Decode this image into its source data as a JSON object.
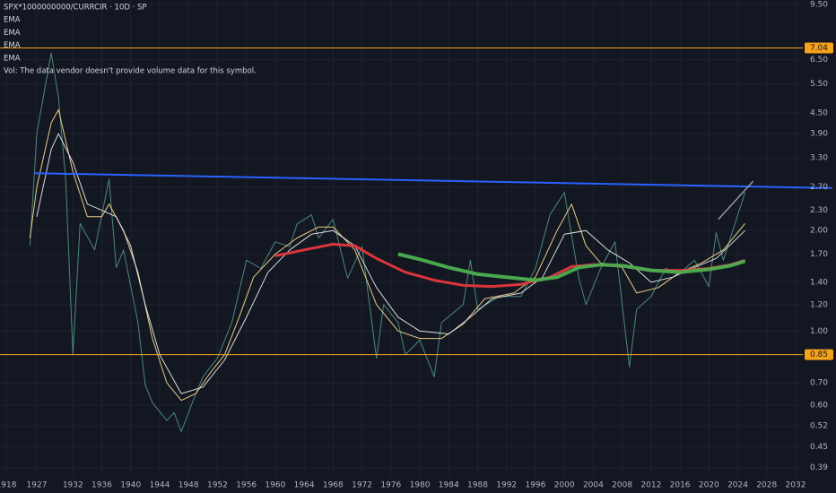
{
  "chart_data": {
    "type": "line",
    "title": "SPX*1000000000/CURRCIR · 10D · SP",
    "note": "Vol: The data vendor doesn't provide volume data for this symbol.",
    "log_scale": true,
    "grid": true,
    "ylim": [
      0.366,
      9.8
    ],
    "yticks": [
      {
        "value": 9.5,
        "label": "9.50"
      },
      {
        "value": 6.5,
        "label": "6.50"
      },
      {
        "value": 5.5,
        "label": "5.50"
      },
      {
        "value": 4.5,
        "label": "4.50"
      },
      {
        "value": 3.9,
        "label": "3.90"
      },
      {
        "value": 3.3,
        "label": "3.30"
      },
      {
        "value": 2.7,
        "label": "2.70"
      },
      {
        "value": 2.3,
        "label": "2.30"
      },
      {
        "value": 2.0,
        "label": "2.00"
      },
      {
        "value": 1.7,
        "label": "1.70"
      },
      {
        "value": 1.4,
        "label": "1.40"
      },
      {
        "value": 1.2,
        "label": "1.20"
      },
      {
        "value": 1.0,
        "label": "1.00"
      },
      {
        "value": 0.7,
        "label": "0.70"
      },
      {
        "value": 0.6,
        "label": "0.60"
      },
      0.52,
      0.45,
      0.39
    ],
    "xlim": [
      1916.1,
      2033
    ],
    "xticks": [
      1918,
      1927,
      1932,
      1936,
      1940,
      1944,
      1948,
      1952,
      1956,
      1960,
      1964,
      1968,
      1972,
      1976,
      1980,
      1984,
      1988,
      1992,
      1996,
      2000,
      2004,
      2008,
      2012,
      2016,
      2020,
      2024,
      2028,
      2032
    ],
    "hlines": [
      {
        "value": 7.04,
        "color": "#f7a21b"
      },
      {
        "value": 0.85,
        "color": "#f7a21b"
      }
    ],
    "trendlines": [
      {
        "color": "#2962ff",
        "x": [
          1926.3,
          2037.1
        ],
        "values": [
          2.97,
          2.68
        ]
      },
      {
        "color": "#9598a1",
        "x": [
          2021.3,
          2026.1
        ],
        "values": [
          2.16,
          2.81
        ]
      }
    ],
    "series": [
      {
        "color": "#4f8f80",
        "x": [
          1925,
          1927,
          1929,
          1930,
          1931,
          1932,
          1933,
          1935,
          1937,
          1938,
          1939,
          1941,
          1942,
          1943,
          1945,
          1946,
          1947,
          1949,
          1950,
          1952,
          1954,
          1956,
          1958,
          1960,
          1962,
          1963,
          1965,
          1966,
          1968,
          1970,
          1972,
          1974,
          1975,
          1977,
          1978,
          1980,
          1982,
          1983,
          1986,
          1987,
          1988,
          1991,
          1994,
          1996,
          1998,
          2000,
          2002,
          2003,
          2005,
          2007,
          2009,
          2010,
          2012,
          2014,
          2016,
          2018,
          2020,
          2021,
          2022,
          2024,
          2025
        ],
        "values": [
          1.8,
          3.9,
          6.8,
          5.0,
          2.85,
          0.85,
          2.1,
          1.75,
          2.85,
          1.55,
          1.75,
          1.06,
          0.69,
          0.61,
          0.54,
          0.57,
          0.5,
          0.65,
          0.73,
          0.83,
          1.06,
          1.63,
          1.54,
          1.85,
          1.79,
          2.09,
          2.23,
          1.9,
          2.16,
          1.44,
          1.79,
          0.83,
          1.2,
          1.06,
          0.85,
          0.94,
          0.73,
          1.06,
          1.2,
          1.63,
          1.16,
          1.27,
          1.27,
          1.54,
          2.23,
          2.6,
          1.44,
          1.2,
          1.54,
          1.85,
          0.78,
          1.16,
          1.27,
          1.54,
          1.49,
          1.63,
          1.36,
          1.97,
          1.63,
          2.23,
          2.6
        ]
      },
      {
        "name": "EMA",
        "color": "#f5d58a",
        "x": [
          1925,
          1927,
          1929,
          1930,
          1932,
          1934,
          1936,
          1937,
          1939,
          1941,
          1943,
          1945,
          1947,
          1949,
          1951,
          1953,
          1955,
          1957,
          1960,
          1963,
          1966,
          1968,
          1971,
          1974,
          1977,
          1980,
          1983,
          1986,
          1989,
          1993,
          1996,
          1999,
          2001,
          2003,
          2005,
          2008,
          2010,
          2013,
          2016,
          2019,
          2022,
          2025
        ],
        "values": [
          1.9,
          2.7,
          4.2,
          4.6,
          3.0,
          2.2,
          2.2,
          2.4,
          2.0,
          1.5,
          0.95,
          0.7,
          0.62,
          0.65,
          0.75,
          0.85,
          1.1,
          1.45,
          1.7,
          1.9,
          2.05,
          2.05,
          1.75,
          1.2,
          1.0,
          0.95,
          0.95,
          1.05,
          1.25,
          1.3,
          1.45,
          2.0,
          2.4,
          1.8,
          1.6,
          1.55,
          1.3,
          1.35,
          1.5,
          1.6,
          1.75,
          2.1
        ]
      },
      {
        "name": "EMA",
        "color": "#e6e6e6",
        "x": [
          1927,
          1929,
          1930,
          1932,
          1934,
          1936,
          1938,
          1940,
          1942,
          1944,
          1947,
          1950,
          1953,
          1956,
          1959,
          1962,
          1965,
          1968,
          1971,
          1974,
          1977,
          1980,
          1984,
          1987,
          1990,
          1994,
          1997,
          2000,
          2003,
          2006,
          2009,
          2012,
          2015,
          2018,
          2021,
          2025
        ],
        "values": [
          2.2,
          3.5,
          3.9,
          3.2,
          2.4,
          2.3,
          2.2,
          1.8,
          1.2,
          0.85,
          0.65,
          0.68,
          0.82,
          1.1,
          1.5,
          1.75,
          1.95,
          2.0,
          1.8,
          1.35,
          1.1,
          1.0,
          0.98,
          1.1,
          1.25,
          1.3,
          1.45,
          1.95,
          2.0,
          1.75,
          1.6,
          1.4,
          1.45,
          1.55,
          1.65,
          2.0
        ]
      },
      {
        "name": "EMA",
        "color": "#e5373f",
        "x": [
          1960,
          1964,
          1968,
          1971,
          1974,
          1978,
          1982,
          1986,
          1990,
          1994,
          1998,
          2001,
          2004,
          2008,
          2012,
          2016,
          2020,
          2023,
          2025
        ],
        "values": [
          1.68,
          1.75,
          1.82,
          1.8,
          1.65,
          1.5,
          1.42,
          1.37,
          1.36,
          1.38,
          1.45,
          1.56,
          1.58,
          1.57,
          1.52,
          1.52,
          1.54,
          1.58,
          1.63
        ]
      },
      {
        "name": "EMA",
        "color": "#4caf50",
        "x": [
          1977,
          1980,
          1984,
          1988,
          1992,
          1996,
          1999,
          2002,
          2005,
          2008,
          2012,
          2016,
          2020,
          2023,
          2025
        ],
        "values": [
          1.7,
          1.64,
          1.55,
          1.48,
          1.45,
          1.42,
          1.45,
          1.55,
          1.58,
          1.57,
          1.52,
          1.5,
          1.53,
          1.57,
          1.62
        ]
      }
    ]
  }
}
